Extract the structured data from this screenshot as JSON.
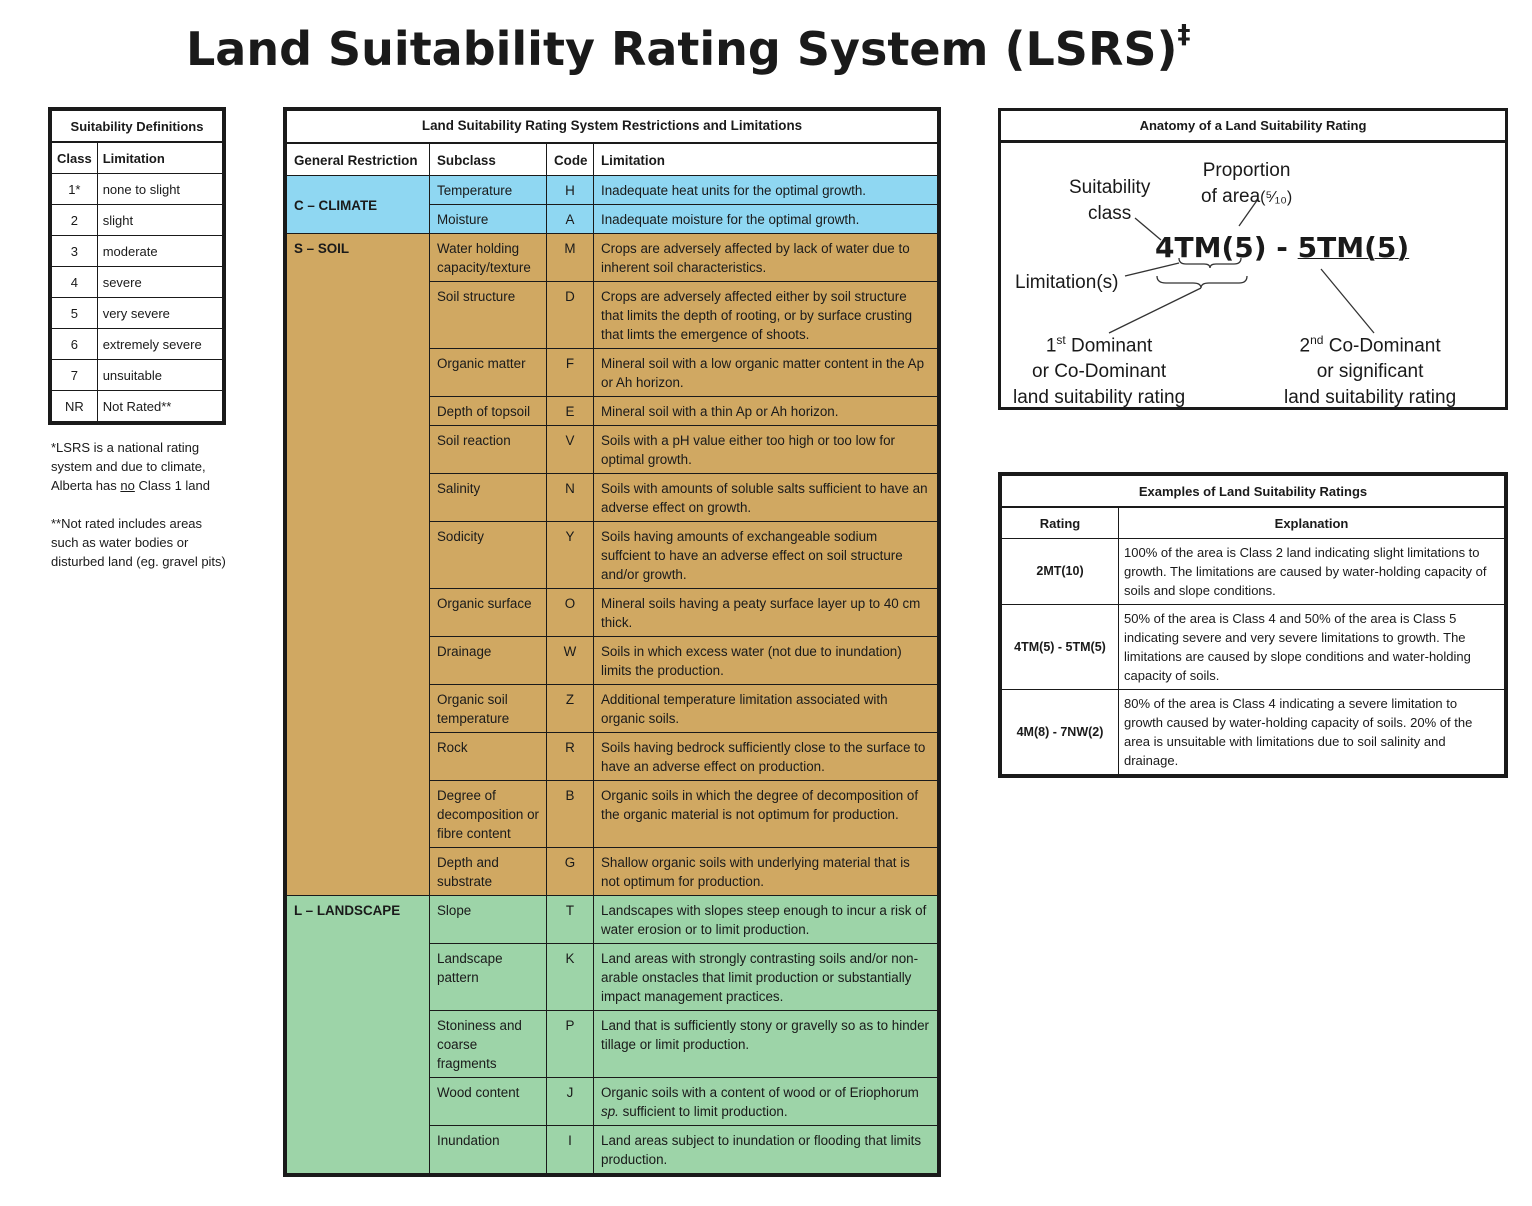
{
  "title": "Land Suitability Rating System (LSRS)",
  "title_mark": "‡",
  "definitions": {
    "caption": "Suitability Definitions",
    "col_class": "Class",
    "col_limitation": "Limitation",
    "rows": [
      {
        "cls": "1*",
        "lim": "none to slight"
      },
      {
        "cls": "2",
        "lim": "slight"
      },
      {
        "cls": "3",
        "lim": "moderate"
      },
      {
        "cls": "4",
        "lim": "severe"
      },
      {
        "cls": "5",
        "lim": "very severe"
      },
      {
        "cls": "6",
        "lim": "extremely severe"
      },
      {
        "cls": "7",
        "lim": "unsuitable"
      },
      {
        "cls": "NR",
        "lim": "Not Rated**"
      }
    ]
  },
  "notes": {
    "note1_a": "*LSRS is a national rating system and due to climate, Alberta has ",
    "note1_u": "no",
    "note1_b": " Class 1 land",
    "note2": "**Not rated includes areas such as water bodies or disturbed land (eg. gravel pits)"
  },
  "main": {
    "caption": "Land Suitability Rating System Restrictions and Limitations",
    "col_general": "General Restriction",
    "col_subclass": "Subclass",
    "col_code": "Code",
    "col_limitation": "Limitation",
    "groups": {
      "climate": "C – CLIMATE",
      "soil": "S – SOIL",
      "landscape": "L – LANDSCAPE"
    },
    "rows": [
      {
        "sub": "Temperature",
        "code": "H",
        "lim": "Inadequate heat units for the optimal growth."
      },
      {
        "sub": "Moisture",
        "code": "A",
        "lim": "Inadequate moisture for the optimal growth."
      },
      {
        "sub": "Water holding capacity/texture",
        "code": "M",
        "lim": "Crops are adversely affected by lack of water due to inherent soil characteristics."
      },
      {
        "sub": "Soil structure",
        "code": "D",
        "lim": "Crops are adversely affected either by soil structure that limits the depth of rooting, or by surface crusting that limts the emergence of shoots."
      },
      {
        "sub": "Organic matter",
        "code": "F",
        "lim": "Mineral soil with a low organic matter content in the Ap or Ah horizon."
      },
      {
        "sub": "Depth of topsoil",
        "code": "E",
        "lim": "Mineral soil with a thin Ap or Ah horizon."
      },
      {
        "sub": "Soil reaction",
        "code": "V",
        "lim": "Soils with a pH value either too high or too low for optimal growth."
      },
      {
        "sub": "Salinity",
        "code": "N",
        "lim": "Soils with amounts of soluble salts sufficient to have an adverse effect on growth."
      },
      {
        "sub": "Sodicity",
        "code": "Y",
        "lim": "Soils having amounts of exchangeable sodium suffcient to have an adverse effect on soil structure and/or growth."
      },
      {
        "sub": "Organic surface",
        "code": "O",
        "lim": "Mineral soils having a peaty surface layer up to 40 cm thick."
      },
      {
        "sub": "Drainage",
        "code": "W",
        "lim": "Soils in which excess water (not due to inundation) limits the production."
      },
      {
        "sub": "Organic soil temperature",
        "code": "Z",
        "lim": "Additional temperature limitation associated with organic soils."
      },
      {
        "sub": "Rock",
        "code": "R",
        "lim": "Soils having bedrock sufficiently close to the surface to have an adverse effect on production."
      },
      {
        "sub": "Degree of decomposition or fibre content",
        "code": "B",
        "lim": "Organic soils in which the degree of decomposition of the organic material is not optimum for production."
      },
      {
        "sub": "Depth and substrate",
        "code": "G",
        "lim": "Shallow organic soils with underlying material that is not optimum for production."
      },
      {
        "sub": "Slope",
        "code": "T",
        "lim": "Landscapes with slopes steep enough to incur a risk of water erosion or to limit production."
      },
      {
        "sub": "Landscape pattern",
        "code": "K",
        "lim": "Land areas with strongly contrasting soils and/or non-arable onstacles that limit production or substantially impact management practices."
      },
      {
        "sub": "Stoniness and coarse fragments",
        "code": "P",
        "lim": "Land that is sufficiently stony or gravelly so as to hinder tillage or limit production."
      },
      {
        "sub": "Wood content",
        "code": "J",
        "lim_a": "Organic soils with a content of wood or of Eriophorum ",
        "lim_i": "sp.",
        "lim_b": " sufficient to limit production."
      },
      {
        "sub": "Inundation",
        "code": "I",
        "lim": "Land areas subject to inundation or flooding that limits production."
      }
    ]
  },
  "anatomy": {
    "caption": "Anatomy of a Land Suitability Rating",
    "suitability_class_1": "Suitability",
    "suitability_class_2": "class",
    "proportion_1": "Proportion",
    "proportion_2": "of area",
    "proportion_frac": "(⁵⁄₁₀)",
    "rating_left": "4TM(5)",
    "rating_dash": " - ",
    "rating_right": "5TM(5)",
    "limitations": "Limitation(s)",
    "dom1_a": "1",
    "dom1_sup": "st",
    "dom1_b": " Dominant",
    "dom1_2": "or Co-Dominant",
    "dom1_3": "land suitability rating",
    "dom2_a": "2",
    "dom2_sup": "nd",
    "dom2_b": " Co-Dominant",
    "dom2_2": "or significant",
    "dom2_3": "land suitability rating"
  },
  "examples": {
    "caption": "Examples of Land Suitability Ratings",
    "col_rating": "Rating",
    "col_explanation": "Explanation",
    "rows": [
      {
        "rating": "2MT(10)",
        "text": "100% of the area is Class 2 land indicating slight limitations to growth.  The limitations are caused by water-holding capacity of soils and slope conditions."
      },
      {
        "rating": "4TM(5) - 5TM(5)",
        "text": "50% of the area is Class 4 and 50% of the area is Class 5 indicating severe and very severe limitations to growth.  The limitations are caused by slope conditions and water-holding capacity of soils."
      },
      {
        "rating": "4M(8) - 7NW(2)",
        "text": "80% of the area is Class 4 indicating a severe limitation to growth caused by water-holding capacity of soils.  20% of the area is unsuitable with limitations due to soil salinity and drainage."
      }
    ]
  }
}
